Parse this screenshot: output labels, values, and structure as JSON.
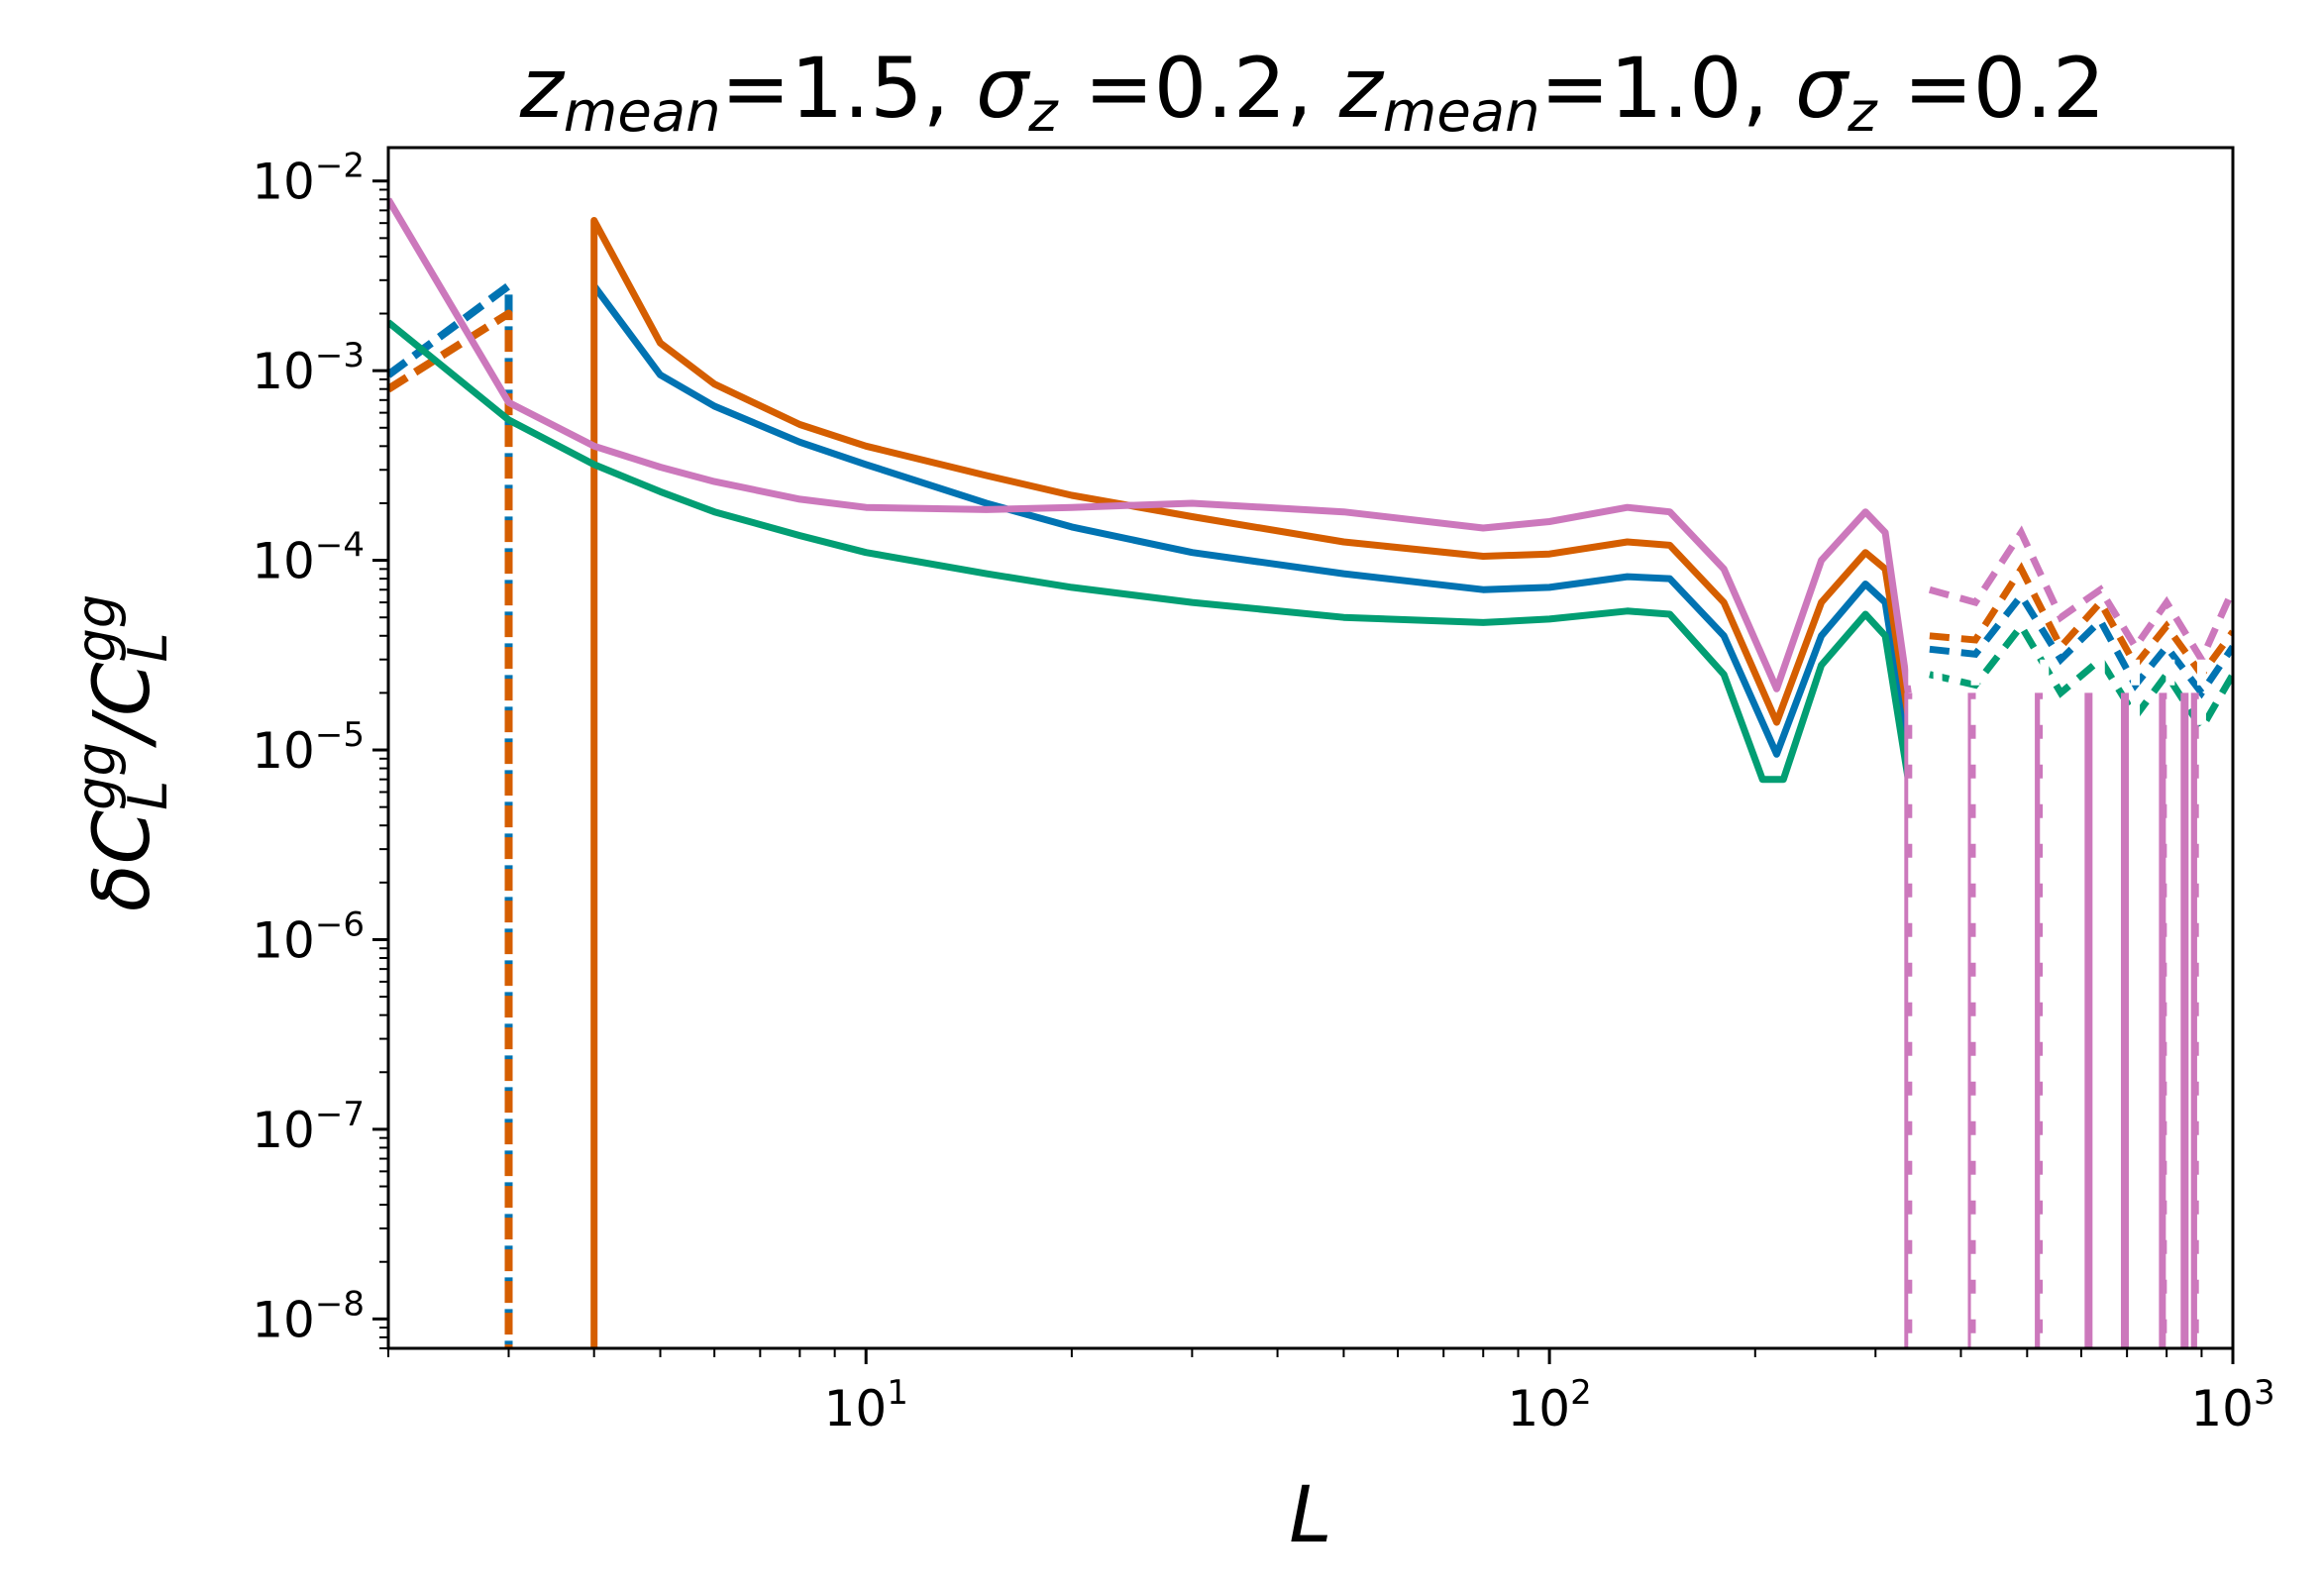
{
  "chart_data": {
    "type": "line",
    "title": {
      "z1_symbol": "z",
      "z1_sub": "mean",
      "z1_value": "=1.5, ",
      "s1_symbol": "σ",
      "s1_sub": "z",
      "s1_value": " =0.2, ",
      "z2_symbol": "z",
      "z2_sub": "mean",
      "z2_value": "=1.0, ",
      "s2_symbol": "σ",
      "s2_sub": "z",
      "s2_value": " =0.2"
    },
    "xlabel": "L",
    "ylabel": "δC_L^gg / C_L^gg",
    "xscale": "log",
    "yscale": "log",
    "xlim": [
      2,
      1000
    ],
    "ylim": [
      7e-09,
      0.015
    ],
    "x_ticks": [
      {
        "base": "10",
        "exp": "1",
        "value": 10
      },
      {
        "base": "10",
        "exp": "2",
        "value": 100
      },
      {
        "base": "10",
        "exp": "3",
        "value": 1000
      }
    ],
    "y_ticks": [
      {
        "base": "10",
        "exp": "−2",
        "value": 0.01
      },
      {
        "base": "10",
        "exp": "−3",
        "value": 0.001
      },
      {
        "base": "10",
        "exp": "−4",
        "value": 0.0001
      },
      {
        "base": "10",
        "exp": "−5",
        "value": 1e-05
      },
      {
        "base": "10",
        "exp": "−6",
        "value": 1e-06
      },
      {
        "base": "10",
        "exp": "−7",
        "value": 1e-07
      },
      {
        "base": "10",
        "exp": "−8",
        "value": 1e-08
      }
    ],
    "series": [
      {
        "name": "blue",
        "color": "#0173b2",
        "solid": [
          [
            4,
            0.0028
          ],
          [
            5,
            0.00095
          ],
          [
            6,
            0.00065
          ],
          [
            8,
            0.00042
          ],
          [
            10,
            0.00032
          ],
          [
            15,
            0.0002
          ],
          [
            20,
            0.00015
          ],
          [
            30,
            0.00011
          ],
          [
            50,
            8.5e-05
          ],
          [
            80,
            7e-05
          ],
          [
            100,
            7.2e-05
          ],
          [
            130,
            8.2e-05
          ],
          [
            150,
            8e-05
          ],
          [
            180,
            4e-05
          ],
          [
            215,
            9.5e-06
          ],
          [
            250,
            4e-05
          ],
          [
            290,
            7.5e-05
          ],
          [
            310,
            6e-05
          ],
          [
            335,
            1e-05
          ]
        ],
        "dashed": [
          [
            2,
            0.00095
          ],
          [
            3,
            0.0028
          ],
          [
            3,
            1e-09
          ]
        ],
        "dash_tail": [
          [
            360,
            3.4e-05
          ],
          [
            420,
            3.2e-05
          ],
          [
            490,
            6.5e-05
          ],
          [
            560,
            3e-05
          ],
          [
            640,
            4.8e-05
          ],
          [
            720,
            2.2e-05
          ],
          [
            800,
            3.5e-05
          ],
          [
            900,
            2e-05
          ],
          [
            1000,
            3.5e-05
          ]
        ]
      },
      {
        "name": "orange",
        "color": "#d55e00",
        "solid": [
          [
            4,
            1e-09
          ],
          [
            4,
            0.0062
          ],
          [
            5,
            0.0014
          ],
          [
            6,
            0.00085
          ],
          [
            8,
            0.00052
          ],
          [
            10,
            0.0004
          ],
          [
            15,
            0.00028
          ],
          [
            20,
            0.00022
          ],
          [
            30,
            0.00017
          ],
          [
            50,
            0.000125
          ],
          [
            80,
            0.000105
          ],
          [
            100,
            0.000108
          ],
          [
            130,
            0.000125
          ],
          [
            150,
            0.00012
          ],
          [
            180,
            6e-05
          ],
          [
            215,
            1.4e-05
          ],
          [
            250,
            6e-05
          ],
          [
            290,
            0.00011
          ],
          [
            310,
            9e-05
          ],
          [
            335,
            1.5e-05
          ]
        ],
        "dashed": [
          [
            2,
            0.0008
          ],
          [
            3,
            0.002
          ],
          [
            3,
            1e-09
          ]
        ],
        "dash_tail": [
          [
            360,
            4e-05
          ],
          [
            420,
            3.8e-05
          ],
          [
            490,
            9e-05
          ],
          [
            560,
            3.5e-05
          ],
          [
            640,
            6e-05
          ],
          [
            720,
            2.8e-05
          ],
          [
            800,
            4.5e-05
          ],
          [
            900,
            2.5e-05
          ],
          [
            1000,
            4.2e-05
          ]
        ]
      },
      {
        "name": "green",
        "color": "#029e73",
        "solid": [
          [
            2,
            0.0018
          ],
          [
            3,
            0.00055
          ],
          [
            4,
            0.00032
          ],
          [
            5,
            0.00023
          ],
          [
            6,
            0.00018
          ],
          [
            8,
            0.000135
          ],
          [
            10,
            0.00011
          ],
          [
            15,
            8.5e-05
          ],
          [
            20,
            7.2e-05
          ],
          [
            30,
            6e-05
          ],
          [
            50,
            5e-05
          ],
          [
            80,
            4.7e-05
          ],
          [
            100,
            4.9e-05
          ],
          [
            130,
            5.4e-05
          ],
          [
            150,
            5.2e-05
          ],
          [
            180,
            2.5e-05
          ],
          [
            205,
            7e-06
          ],
          [
            220,
            7e-06
          ],
          [
            250,
            2.8e-05
          ],
          [
            290,
            5.2e-05
          ],
          [
            310,
            4e-05
          ],
          [
            335,
            7e-06
          ]
        ],
        "dashed": [],
        "dash_tail": [
          [
            360,
            2.5e-05
          ],
          [
            420,
            2.2e-05
          ],
          [
            490,
            4.5e-05
          ],
          [
            560,
            2e-05
          ],
          [
            640,
            3e-05
          ],
          [
            720,
            1.5e-05
          ],
          [
            800,
            2.5e-05
          ],
          [
            900,
            1.3e-05
          ],
          [
            1000,
            2.5e-05
          ]
        ]
      },
      {
        "name": "pink",
        "color": "#cc78bc",
        "solid": [
          [
            2,
            0.008
          ],
          [
            3,
            0.00068
          ],
          [
            4,
            0.0004
          ],
          [
            5,
            0.00031
          ],
          [
            6,
            0.00026
          ],
          [
            8,
            0.00021
          ],
          [
            10,
            0.00019
          ],
          [
            15,
            0.000185
          ],
          [
            20,
            0.00019
          ],
          [
            30,
            0.0002
          ],
          [
            50,
            0.00018
          ],
          [
            80,
            0.000148
          ],
          [
            100,
            0.00016
          ],
          [
            130,
            0.00019
          ],
          [
            150,
            0.00018
          ],
          [
            180,
            9e-05
          ],
          [
            215,
            2.1e-05
          ],
          [
            250,
            0.0001
          ],
          [
            290,
            0.00018
          ],
          [
            310,
            0.00014
          ],
          [
            335,
            2e-05
          ]
        ],
        "dashed": [],
        "dash_tail": [
          [
            360,
            7e-05
          ],
          [
            420,
            6e-05
          ],
          [
            490,
            0.00014
          ],
          [
            560,
            5e-05
          ],
          [
            640,
            7e-05
          ],
          [
            720,
            3.5e-05
          ],
          [
            800,
            6e-05
          ],
          [
            900,
            3e-05
          ],
          [
            1000,
            7e-05
          ]
        ]
      }
    ],
    "spikes": {
      "pink": [
        335,
        415,
        520,
        615,
        695,
        790,
        850,
        880
      ],
      "white_dashed": [
        340,
        370,
        420,
        530,
        640,
        720,
        810,
        900
      ]
    }
  }
}
